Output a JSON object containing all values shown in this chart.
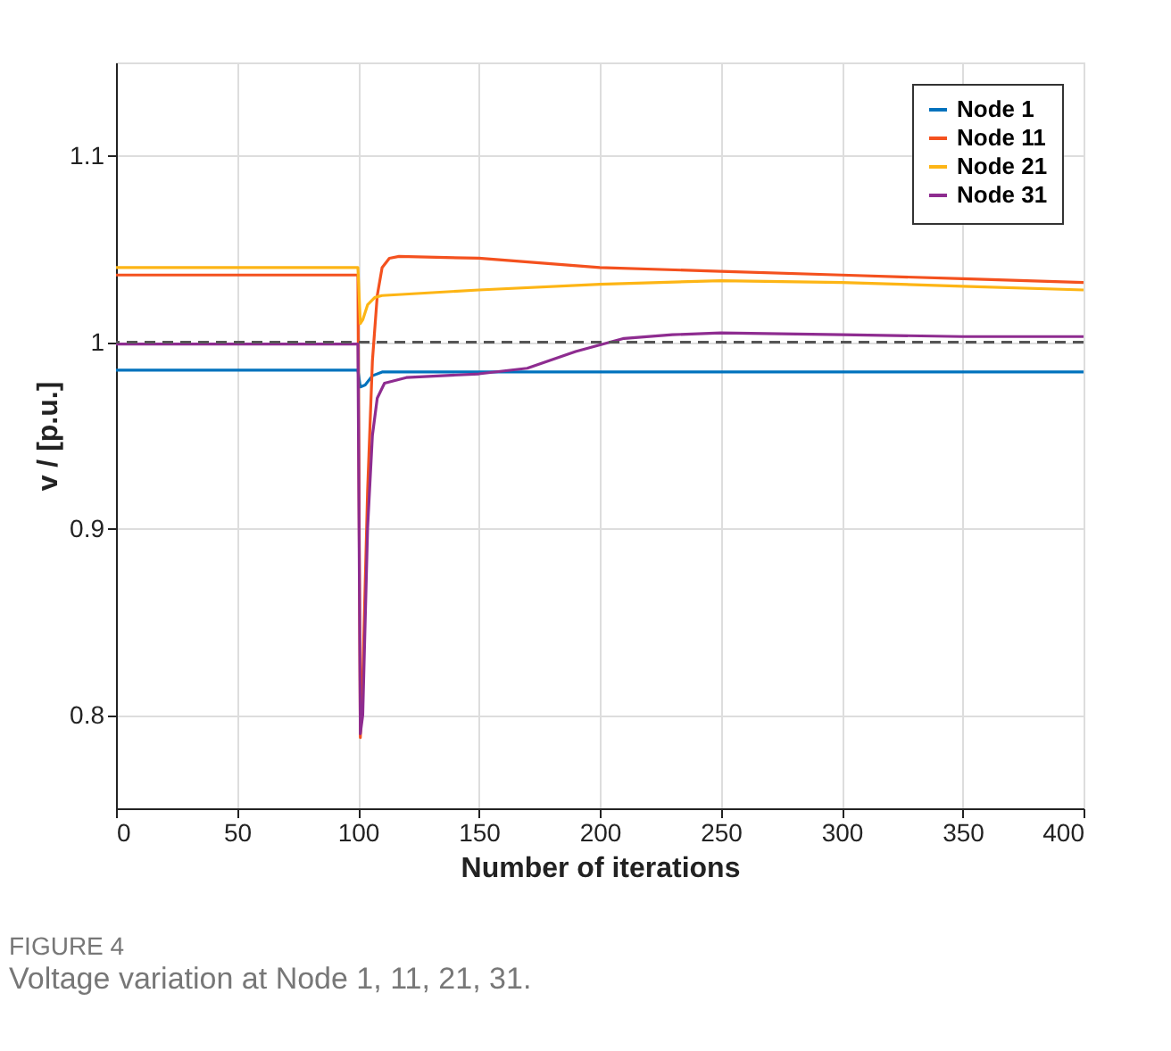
{
  "chart_data": {
    "type": "line",
    "xlabel": "Number of iterations",
    "ylabel": "v / [p.u.]",
    "xlim": [
      0,
      400
    ],
    "xticks": [
      0,
      50,
      100,
      150,
      200,
      250,
      300,
      350,
      400
    ],
    "ylim": [
      0.75,
      1.15
    ],
    "yticks": [
      0.8,
      0.9,
      1,
      1.1
    ],
    "grid": true,
    "legend": "top right",
    "line_style": "solid",
    "marker": "none",
    "ref_lines": [
      {
        "axis": "y",
        "value": 1,
        "color": "#555555",
        "line_style": "dashed"
      }
    ],
    "annotations": [
      "FIGURE 4",
      "Voltage variation at Node 1, 11, 21, 31."
    ],
    "series": [
      {
        "name": "Node 1",
        "color": "#0072bd",
        "x": [
          0,
          100,
          101,
          103,
          106,
          110,
          150,
          250,
          400
        ],
        "values": [
          0.985,
          0.985,
          0.976,
          0.977,
          0.982,
          0.984,
          0.984,
          0.984,
          0.984
        ]
      },
      {
        "name": "Node 11",
        "color": "#f4511e",
        "x": [
          0,
          100,
          101,
          102,
          104,
          106,
          108,
          110,
          113,
          117,
          150,
          200,
          250,
          300,
          350,
          400
        ],
        "values": [
          1.036,
          1.036,
          0.788,
          0.82,
          0.92,
          0.99,
          1.025,
          1.04,
          1.045,
          1.046,
          1.045,
          1.04,
          1.038,
          1.036,
          1.034,
          1.032
        ]
      },
      {
        "name": "Node 21",
        "color": "#fdb515",
        "x": [
          0,
          100,
          101,
          102,
          104,
          107,
          110,
          150,
          200,
          250,
          300,
          350,
          400
        ],
        "values": [
          1.04,
          1.04,
          1.01,
          1.012,
          1.02,
          1.024,
          1.025,
          1.028,
          1.031,
          1.033,
          1.032,
          1.03,
          1.028
        ]
      },
      {
        "name": "Node 31",
        "color": "#8e2c90",
        "x": [
          0,
          100,
          101,
          102,
          104,
          106,
          108,
          111,
          120,
          150,
          170,
          190,
          210,
          230,
          250,
          300,
          350,
          400
        ],
        "values": [
          0.999,
          0.999,
          0.79,
          0.8,
          0.9,
          0.95,
          0.97,
          0.978,
          0.981,
          0.983,
          0.986,
          0.995,
          1.002,
          1.004,
          1.005,
          1.004,
          1.003,
          1.003
        ]
      }
    ]
  }
}
